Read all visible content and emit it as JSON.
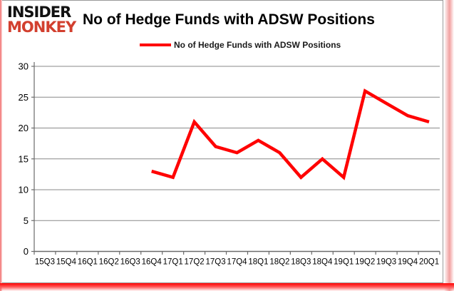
{
  "logo": {
    "line1": "INSIDER",
    "line2": "MONKEY"
  },
  "header": {
    "title": "No of Hedge Funds with ADSW Positions"
  },
  "legend": {
    "label": "No of Hedge Funds with ADSW Positions"
  },
  "colors": {
    "line": "#ff0000",
    "grid": "#898989",
    "axis": "#6b6b6b",
    "tick_label": "#000000",
    "logo_red": "#d23f2e",
    "border_glow": "#ff1414"
  },
  "chart_data": {
    "type": "line",
    "title": "No of Hedge Funds with ADSW Positions",
    "xlabel": "",
    "ylabel": "",
    "categories": [
      "15Q3",
      "15Q4",
      "16Q1",
      "16Q2",
      "16Q3",
      "16Q4",
      "17Q1",
      "17Q2",
      "17Q3",
      "17Q4",
      "18Q1",
      "18Q2",
      "18Q3",
      "18Q4",
      "19Q1",
      "19Q2",
      "19Q3",
      "19Q4",
      "20Q1"
    ],
    "series": [
      {
        "name": "No of Hedge Funds with ADSW Positions",
        "values": [
          null,
          null,
          null,
          null,
          null,
          13,
          12,
          21,
          17,
          16,
          18,
          16,
          12,
          15,
          12,
          26,
          24,
          22,
          21
        ]
      }
    ],
    "ylim": [
      0,
      30
    ],
    "yticks": [
      0,
      5,
      10,
      15,
      20,
      25,
      30
    ],
    "grid": true,
    "legend_position": "top"
  }
}
